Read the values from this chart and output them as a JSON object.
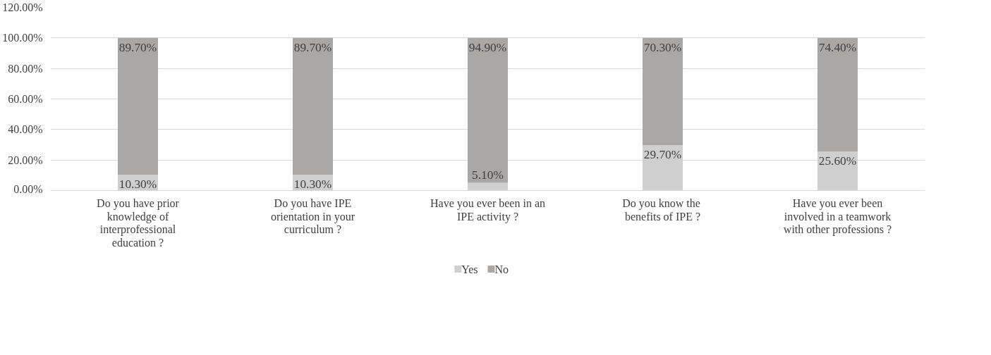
{
  "chart_data": {
    "type": "bar",
    "stacked": true,
    "categories": [
      "Do you have prior knowledge of interprofessional education ?",
      "Do you have IPE orientation in your curriculum ?",
      "Have you ever been in an IPE activity ?",
      "Do you know  the benefits of IPE ?",
      "Have you ever been involved in a teamwork with other professions ?"
    ],
    "series": [
      {
        "name": "Yes",
        "color": "#d0cfcf",
        "values": [
          10.3,
          10.3,
          5.1,
          29.7,
          25.6
        ],
        "value_labels": [
          "10.30%",
          "10.30%",
          "5.10%",
          "29.70%",
          "25.60%"
        ]
      },
      {
        "name": "No",
        "color": "#aaa7a7",
        "values": [
          89.7,
          89.7,
          94.9,
          70.3,
          74.4
        ],
        "value_labels": [
          "89.70%",
          "89.70%",
          "94.90%",
          "70.30%",
          "74.40%"
        ]
      }
    ],
    "ylim": [
      0,
      120
    ],
    "yticks": [
      {
        "value": 0,
        "label": "0.00%"
      },
      {
        "value": 20,
        "label": "20.00%"
      },
      {
        "value": 40,
        "label": "40.00%"
      },
      {
        "value": 60,
        "label": "60.00%"
      },
      {
        "value": 80,
        "label": "80.00%"
      },
      {
        "value": 100,
        "label": "100.00%"
      },
      {
        "value": 120,
        "label": "120.00%"
      }
    ],
    "grid": "y",
    "legend": "bottom"
  }
}
